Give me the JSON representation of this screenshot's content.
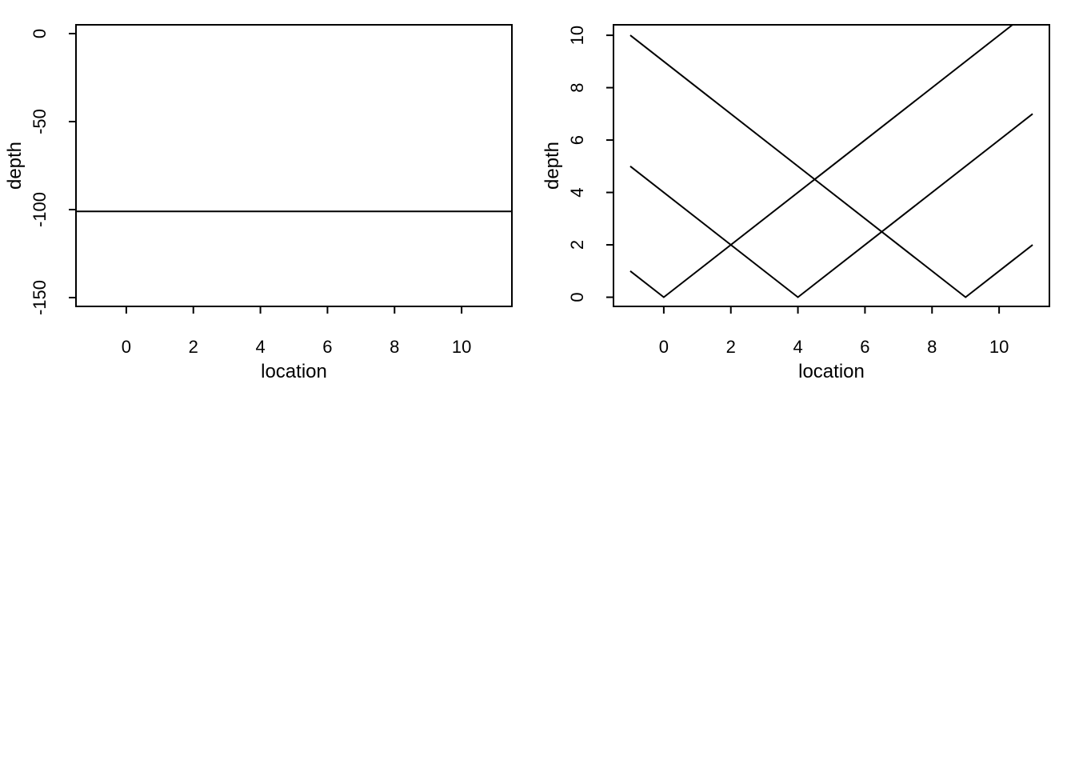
{
  "chart_data": [
    {
      "type": "line",
      "xlabel": "location",
      "ylabel": "depth",
      "xlim": [
        -1.5,
        11.5
      ],
      "ylim": [
        -155,
        5
      ],
      "xticks": [
        0,
        2,
        4,
        6,
        8,
        10
      ],
      "xtick_labels": [
        "0",
        "2",
        "4",
        "6",
        "8",
        "10"
      ],
      "yticks": [
        0,
        -50,
        -100,
        -150
      ],
      "ytick_labels": [
        "0",
        "-50",
        "-100",
        "-150"
      ],
      "grid": false,
      "series": [
        {
          "x": [
            -1.5,
            11.5
          ],
          "y": [
            -101,
            -101
          ]
        }
      ]
    },
    {
      "type": "line",
      "xlabel": "location",
      "ylabel": "depth",
      "xlim": [
        -1.5,
        11.5
      ],
      "ylim": [
        -0.35,
        10.4
      ],
      "xticks": [
        0,
        2,
        4,
        6,
        8,
        10
      ],
      "xtick_labels": [
        "0",
        "2",
        "4",
        "6",
        "8",
        "10"
      ],
      "yticks": [
        0,
        2,
        4,
        6,
        8,
        10
      ],
      "ytick_labels": [
        "0",
        "2",
        "4",
        "6",
        "8",
        "10"
      ],
      "grid": false,
      "series": [
        {
          "x": [
            -1,
            0,
            10.4
          ],
          "y": [
            1,
            0,
            10.4
          ]
        },
        {
          "x": [
            -1,
            4,
            11
          ],
          "y": [
            5,
            0,
            7
          ]
        },
        {
          "x": [
            -1,
            9,
            11
          ],
          "y": [
            10,
            0,
            2
          ]
        }
      ]
    }
  ]
}
